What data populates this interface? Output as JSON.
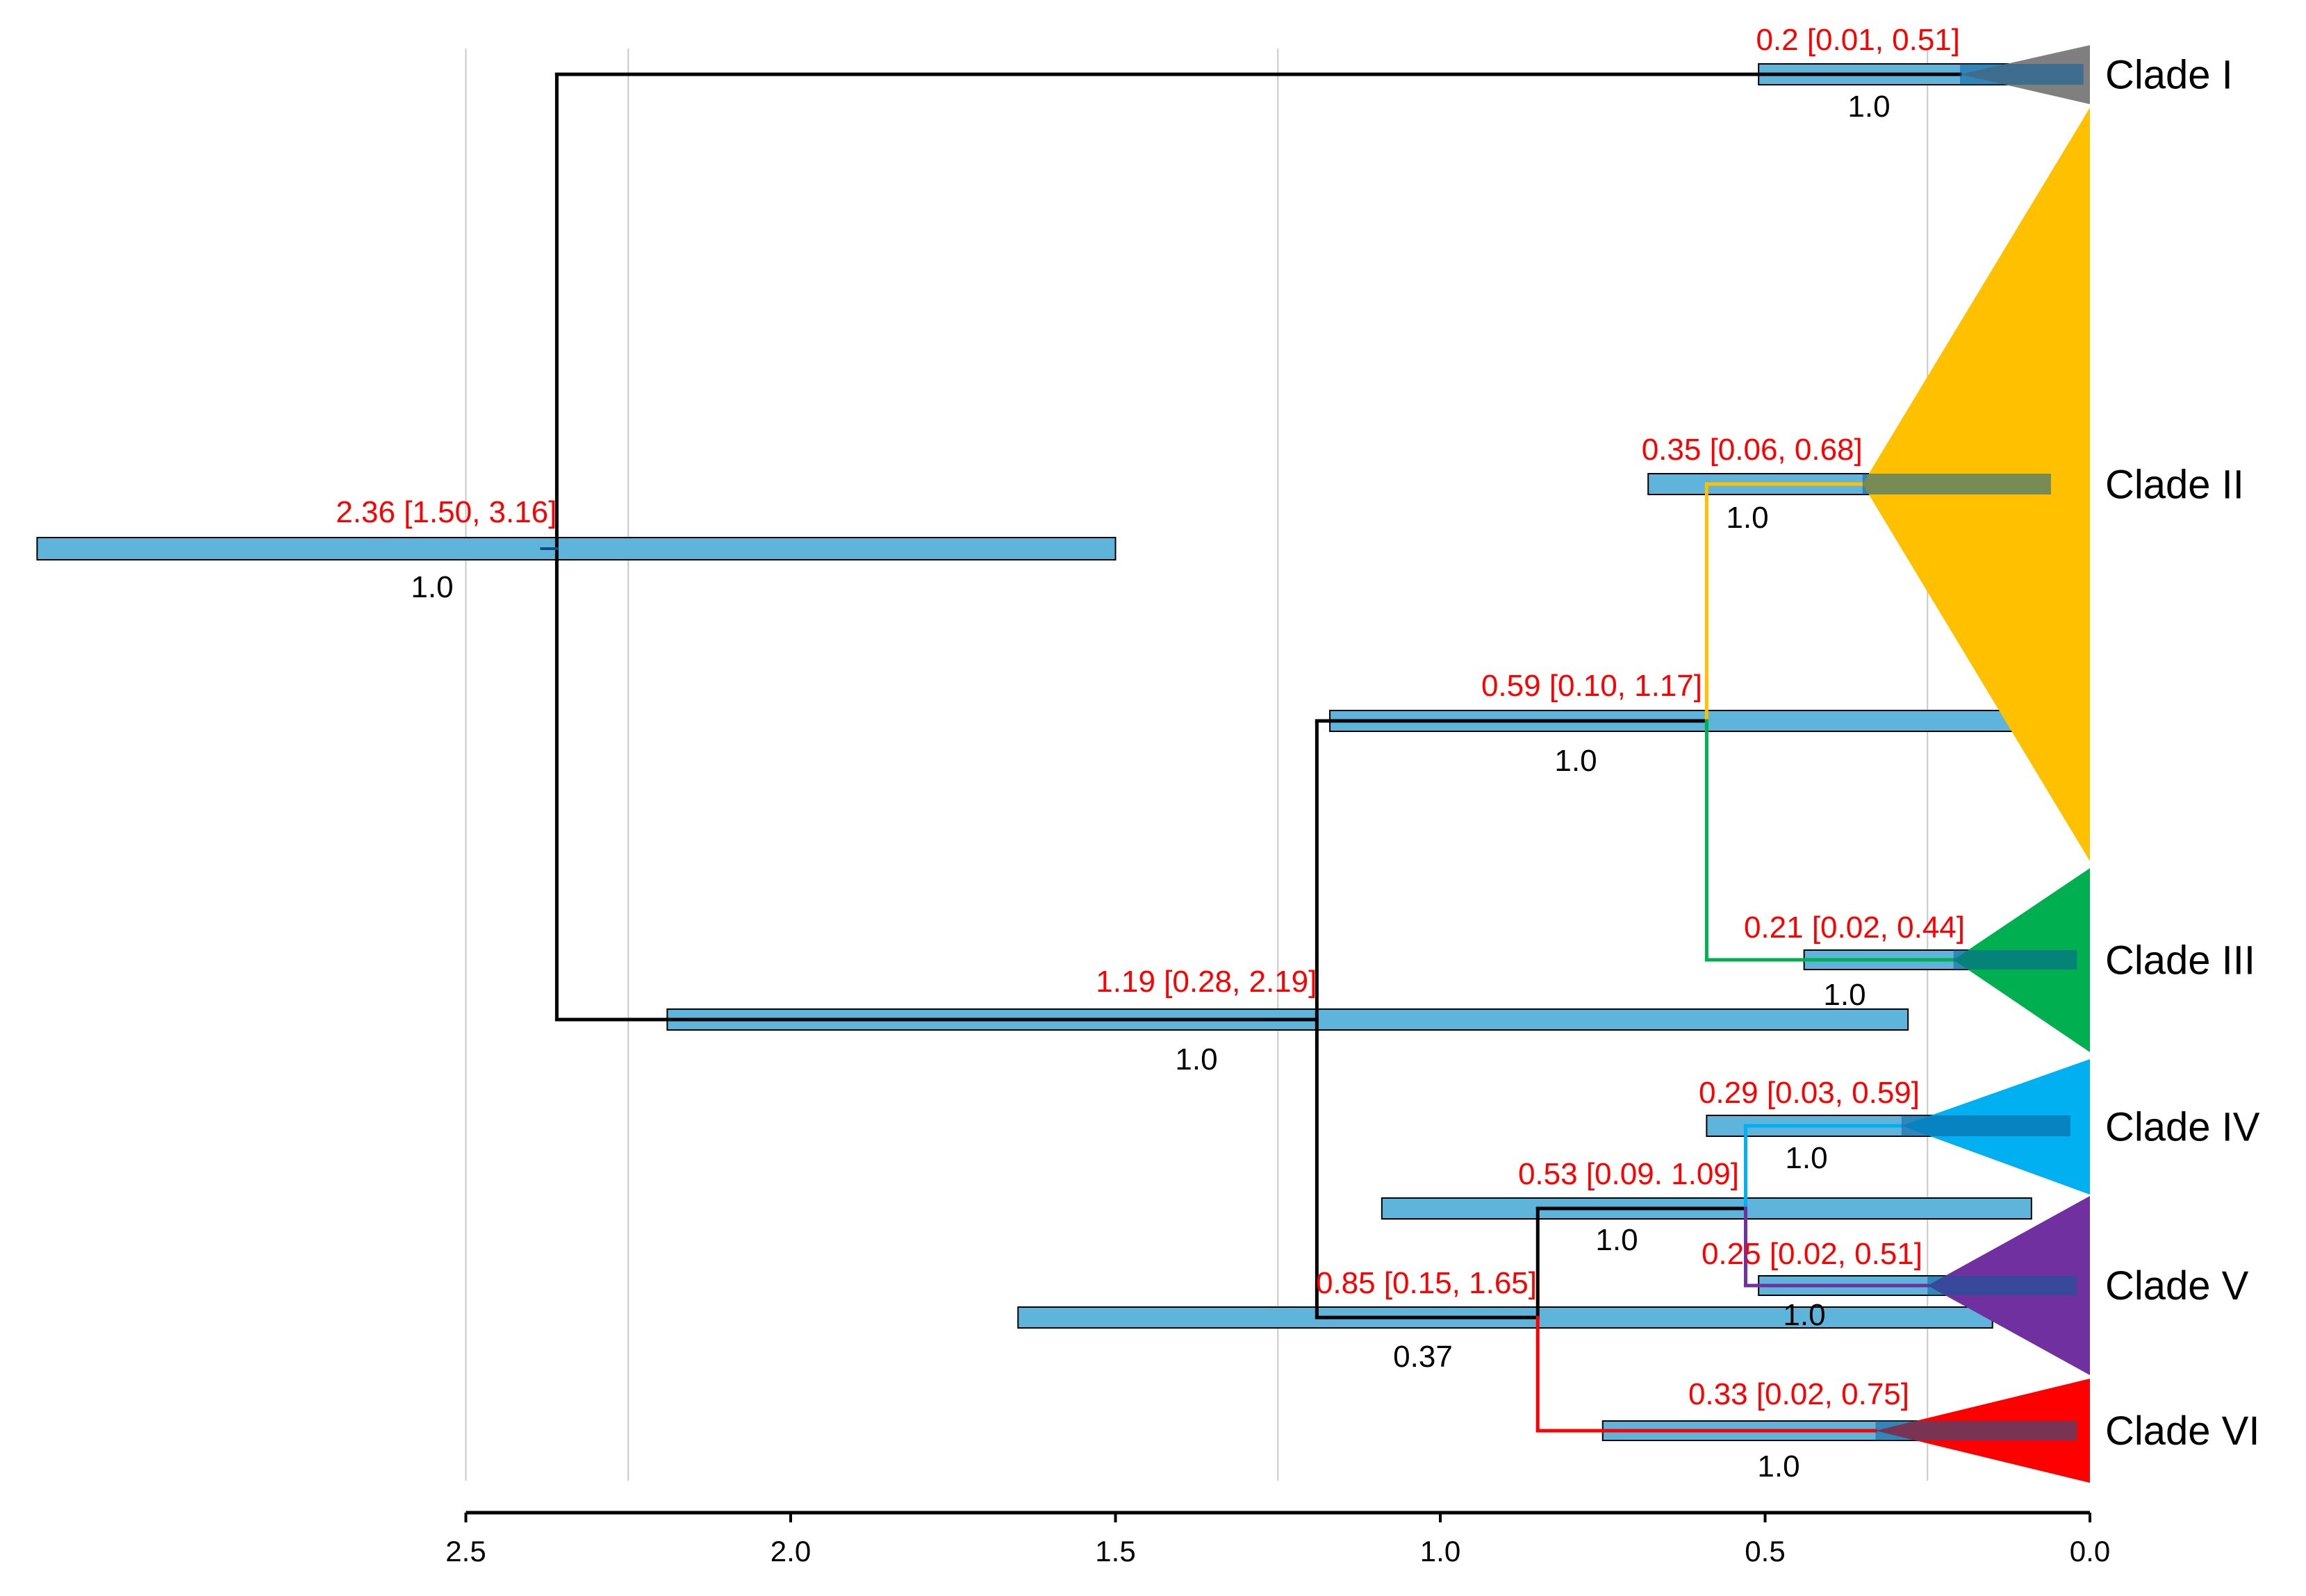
{
  "chart_data": {
    "type": "time-calibrated phylogenetic tree",
    "axis": {
      "reversed": true,
      "range": [
        2.5,
        0.0
      ],
      "ticks": [
        {
          "value": 2.5,
          "label": "2.5"
        },
        {
          "value": 2.0,
          "label": "2.0"
        },
        {
          "value": 1.5,
          "label": "1.5"
        },
        {
          "value": 1.0,
          "label": "1.0"
        },
        {
          "value": 0.5,
          "label": "0.5"
        },
        {
          "value": 0.0,
          "label": "0.0"
        }
      ],
      "gridlines": [
        2.5,
        2.25,
        1.25,
        0.25
      ]
    },
    "nodes": [
      {
        "id": "root",
        "age": 2.36,
        "hpd": [
          1.5,
          3.16
        ],
        "label": "2.36 [1.50, 3.16]",
        "support": "1.0"
      },
      {
        "id": "n_clade1",
        "age": 0.2,
        "hpd": [
          0.01,
          0.51
        ],
        "label": "0.2 [0.01, 0.51]",
        "support": "1.0"
      },
      {
        "id": "n_119",
        "age": 1.19,
        "hpd": [
          0.28,
          2.19
        ],
        "label": "1.19 [0.28, 2.19]",
        "support": "1.0"
      },
      {
        "id": "n_059",
        "age": 0.59,
        "hpd": [
          0.1,
          1.17
        ],
        "label": "0.59 [0.10, 1.17]",
        "support": "1.0"
      },
      {
        "id": "n_clade2",
        "age": 0.35,
        "hpd": [
          0.06,
          0.68
        ],
        "label": "0.35 [0.06, 0.68]",
        "support": "1.0"
      },
      {
        "id": "n_clade3",
        "age": 0.21,
        "hpd": [
          0.02,
          0.44
        ],
        "label": "0.21 [0.02, 0.44]",
        "support": "1.0"
      },
      {
        "id": "n_085",
        "age": 0.85,
        "hpd": [
          0.15,
          1.65
        ],
        "label": "0.85 [0.15, 1.65]",
        "support": "0.37"
      },
      {
        "id": "n_053",
        "age": 0.53,
        "hpd": [
          0.09,
          1.09
        ],
        "label": "0.53 [0.09. 1.09]",
        "support": "1.0"
      },
      {
        "id": "n_clade4",
        "age": 0.29,
        "hpd": [
          0.03,
          0.59
        ],
        "label": "0.29 [0.03, 0.59]",
        "support": "1.0"
      },
      {
        "id": "n_clade5",
        "age": 0.25,
        "hpd": [
          0.02,
          0.51
        ],
        "label": "0.25 [0.02, 0.51]",
        "support": "1.0"
      },
      {
        "id": "n_clade6",
        "age": 0.33,
        "hpd": [
          0.02,
          0.75
        ],
        "label": "0.33 [0.02, 0.75]",
        "support": "1.0"
      }
    ],
    "clades": [
      {
        "name": "Clade I",
        "color": "#7f7f7f",
        "crown_age": 0.2
      },
      {
        "name": "Clade II",
        "color": "#ffc000",
        "crown_age": 0.35
      },
      {
        "name": "Clade III",
        "color": "#00b050",
        "crown_age": 0.21
      },
      {
        "name": "Clade IV",
        "color": "#00b0f0",
        "crown_age": 0.29
      },
      {
        "name": "Clade V",
        "color": "#7030a0",
        "crown_age": 0.25
      },
      {
        "name": "Clade VI",
        "color": "#ff0000",
        "crown_age": 0.33
      }
    ],
    "colors": {
      "hpd_bar": "#5fb4dc",
      "node_label": "#ff0000",
      "support_label": "#000000",
      "branch": "#000000"
    }
  }
}
